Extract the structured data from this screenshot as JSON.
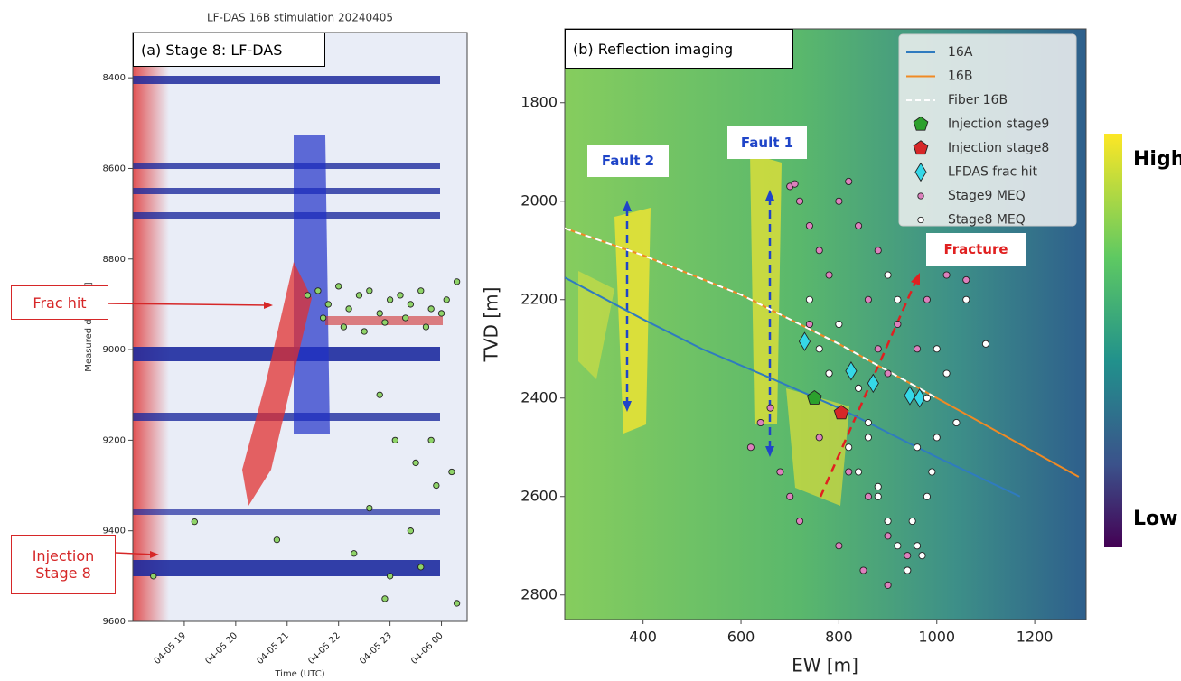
{
  "chart_data": [
    {
      "type": "scatter",
      "title": "LF-DAS 16B stimulation 20240405",
      "panel_label": "(a) Stage 8: LF-DAS",
      "xlabel": "Time (UTC)",
      "ylabel": "Measured depth [ft]",
      "xlim": [
        18,
        24.5
      ],
      "xticks": [
        {
          "value": 19,
          "label": "04-05 19"
        },
        {
          "value": 20,
          "label": "04-05 20"
        },
        {
          "value": 21,
          "label": "04-05 21"
        },
        {
          "value": 22,
          "label": "04-05 22"
        },
        {
          "value": 23,
          "label": "04-05 23"
        },
        {
          "value": 24,
          "label": "04-06 00"
        }
      ],
      "ylim": [
        8300,
        9600
      ],
      "y_inverted": true,
      "yticks": [
        8400,
        8600,
        8800,
        9000,
        9200,
        9400,
        9600
      ],
      "annotations": [
        "Frac hit",
        "Injection Stage 8"
      ],
      "series": [
        {
          "kind": "marker",
          "marker": "circle",
          "color": "#8fd468",
          "x": [
            21.4,
            21.6,
            21.8,
            22.0,
            22.2,
            22.4,
            22.6,
            22.8,
            23.0,
            23.2,
            23.4,
            23.6,
            23.8,
            24.1,
            24.3,
            21.7,
            22.1,
            22.5,
            22.9,
            23.3,
            23.7,
            24.0,
            22.8,
            23.1,
            23.5,
            23.9,
            22.6,
            23.4,
            22.3,
            23.0,
            23.8,
            24.2,
            20.8,
            19.2,
            18.4,
            24.3,
            23.6,
            22.9
          ],
          "y": [
            8880,
            8870,
            8900,
            8860,
            8910,
            8880,
            8870,
            8920,
            8890,
            8880,
            8900,
            8870,
            8910,
            8890,
            8850,
            8930,
            8950,
            8960,
            8940,
            8930,
            8950,
            8920,
            9100,
            9200,
            9250,
            9300,
            9350,
            9400,
            9450,
            9500,
            9200,
            9270,
            9420,
            9380,
            9500,
            9560,
            9480,
            9550
          ]
        }
      ]
    },
    {
      "type": "scatter",
      "panel_label": "(b) Reflection imaging",
      "xlabel": "EW [m]",
      "ylabel": "TVD [m]",
      "xlim": [
        240,
        1305
      ],
      "xticks": [
        400,
        600,
        800,
        1000,
        1200
      ],
      "ylim": [
        1650,
        2850
      ],
      "y_inverted": true,
      "yticks": [
        1800,
        2000,
        2200,
        2400,
        2600,
        2800
      ],
      "annotations": [
        "Fault 2",
        "Fault 1",
        "Fracture"
      ],
      "colorbar_labels": [
        "High",
        "Low"
      ],
      "series": [
        {
          "name": "16A",
          "kind": "line",
          "color": "#2f7bbf",
          "x": [
            240,
            400,
            520,
            650,
            800,
            1000,
            1170
          ],
          "y": [
            2155,
            2240,
            2300,
            2355,
            2420,
            2520,
            2600
          ]
        },
        {
          "name": "16B",
          "kind": "line",
          "color": "#f08a24",
          "x": [
            240,
            400,
            600,
            800,
            1000,
            1290
          ],
          "y": [
            2055,
            2110,
            2190,
            2290,
            2400,
            2560
          ]
        },
        {
          "name": "Fiber 16B",
          "kind": "dashed",
          "color": "#ffffff",
          "x": [
            240,
            400,
            600,
            800,
            1000
          ],
          "y": [
            2055,
            2110,
            2190,
            2290,
            2400
          ]
        },
        {
          "name": "Injection stage9",
          "kind": "marker",
          "marker": "pentagon",
          "color": "#2ca02c",
          "x": [
            750
          ],
          "y": [
            2400
          ]
        },
        {
          "name": "Injection stage8",
          "kind": "marker",
          "marker": "pentagon",
          "color": "#d62728",
          "x": [
            805
          ],
          "y": [
            2430
          ]
        },
        {
          "name": "LFDAS frac hit",
          "kind": "marker",
          "marker": "diamond",
          "color": "#35d8e8",
          "x": [
            730,
            825,
            870,
            945,
            965
          ],
          "y": [
            2285,
            2345,
            2370,
            2395,
            2400
          ]
        },
        {
          "name": "Stage9 MEQ",
          "kind": "marker",
          "marker": "circle",
          "color": "#dd80bd",
          "x": [
            700,
            710,
            720,
            740,
            760,
            780,
            800,
            820,
            840,
            860,
            880,
            900,
            920,
            660,
            640,
            620,
            680,
            700,
            720,
            760,
            800,
            850,
            900,
            940,
            960,
            980,
            1020,
            1060,
            740,
            780,
            820,
            860,
            900,
            880
          ],
          "y": [
            1970,
            1965,
            2000,
            2050,
            2100,
            2150,
            2000,
            1960,
            2050,
            2200,
            2300,
            2350,
            2250,
            2420,
            2450,
            2500,
            2550,
            2600,
            2650,
            2480,
            2700,
            2750,
            2780,
            2720,
            2300,
            2200,
            2150,
            2160,
            2250,
            2350,
            2550,
            2600,
            2680,
            2100
          ]
        },
        {
          "name": "Stage8 MEQ",
          "kind": "marker",
          "marker": "circle",
          "color": "#ffffff",
          "x": [
            740,
            760,
            780,
            800,
            820,
            840,
            860,
            880,
            900,
            920,
            940,
            960,
            980,
            1000,
            1020,
            1040,
            1060,
            1100,
            900,
            920,
            940,
            960,
            880,
            860,
            840,
            980,
            1000,
            950,
            970,
            990
          ],
          "y": [
            2200,
            2300,
            2350,
            2250,
            2500,
            2550,
            2450,
            2600,
            2650,
            2700,
            2750,
            2500,
            2400,
            2300,
            2350,
            2450,
            2200,
            2290,
            2150,
            2200,
            2750,
            2700,
            2580,
            2480,
            2380,
            2600,
            2480,
            2650,
            2720,
            2550
          ]
        }
      ]
    }
  ]
}
